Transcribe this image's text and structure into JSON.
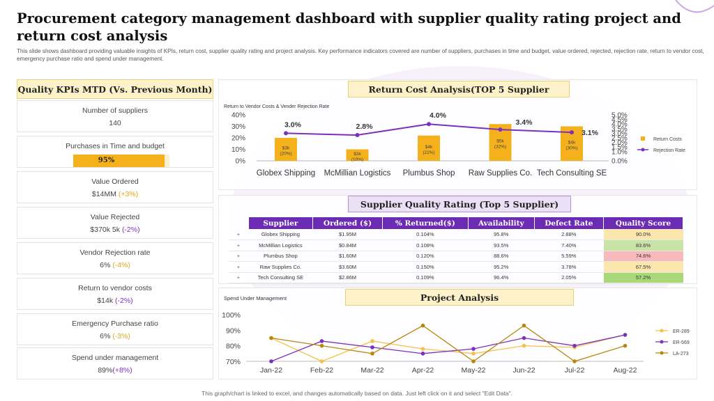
{
  "title": "Procurement category management dashboard with supplier quality rating project and return cost analysis",
  "subtitle": "This slide shows dashboard providing valuable insights of KPIs, return cost, supplier quality rating and project analysis. Key performance indicators covered are number of suppliers, purchases in time and budget, value ordered, rejected, rejection rate, return to vendor cost, emergency purchase ratio and spend under management.",
  "kpi_header": "Quality KPIs  MTD  (Vs. Previous Month)",
  "kpis": {
    "suppliers": {
      "label": "Number  of suppliers",
      "value": "140"
    },
    "purchases": {
      "label": "Purchases in Time and budget",
      "value": "95%",
      "fraction": 0.95
    },
    "value_ordered": {
      "label": "Value Ordered",
      "value": "$14MM",
      "change": "(+3%)"
    },
    "value_rejected": {
      "label": "Value Rejected",
      "value": "$370k 5k",
      "change": "(-2%)"
    },
    "vendor_rejection": {
      "label": "Vendor Rejection rate",
      "value": "6%",
      "change": "(-4%)"
    },
    "return_vendor": {
      "label": "Return to vendor  costs",
      "value": "$14k",
      "change": "(-2%)"
    },
    "emergency": {
      "label": "Emergency Purchase ratio",
      "value": "6%",
      "change": "(-3%)"
    },
    "spend": {
      "label": "Spend under management",
      "value": "89%",
      "change": "(+8%)"
    }
  },
  "return_cost_header": "Return Cost Analysis(TOP 5 Supplier",
  "quality_header": "Supplier Quality Rating (Top 5 Supplier)",
  "project_header": "Project Analysis",
  "footer": "This graph/chart is linked to excel,  and changes automatically based on data. Just left click on it and select \"Edit Data\".",
  "colors": {
    "gold": "#f5b11c",
    "purple": "#7b2fbf",
    "header_purple": "#6c2bb3",
    "olive": "#b8860b"
  },
  "table": {
    "headers": [
      "Supplier",
      "Ordered ($)",
      "% Returned($)",
      "Availability",
      "Defect Rate",
      "Quality Score"
    ],
    "rows": [
      {
        "expand": "+",
        "supplier": "Globex Shipping",
        "ordered": "$1.95M",
        "returned": "0.104%",
        "availability": "95.8%",
        "defect": "2.88%",
        "score": "90.0%",
        "score_color": "#fbe6ad"
      },
      {
        "expand": "+",
        "supplier": "McMillian Logistics",
        "ordered": "$0.84M",
        "returned": "0.108%",
        "availability": "93.5%",
        "defect": "7.40%",
        "score": "83.6%",
        "score_color": "#c9e3a6"
      },
      {
        "expand": "+",
        "supplier": "Plumbus Shop",
        "ordered": "$1.60M",
        "returned": "0.120%",
        "availability": "88.6%",
        "defect": "5.59%",
        "score": "74.6%",
        "score_color": "#f7b9b9"
      },
      {
        "expand": "+",
        "supplier": "Raw Supplies Co.",
        "ordered": "$3.60M",
        "returned": "0.150%",
        "availability": "95.2%",
        "defect": "3.78%",
        "score": "67.5%",
        "score_color": "#fbe6ad"
      },
      {
        "expand": "+",
        "supplier": "Tech Consulting SE",
        "ordered": "$2.86M",
        "returned": "0.109%",
        "availability": "96.4%",
        "defect": "2.05%",
        "score": "57.2%",
        "score_color": "#a8d878"
      }
    ]
  },
  "chart_data": [
    {
      "type": "bar",
      "title": "Return to Vendor Costs & Vender Rejection Rate",
      "categories": [
        "Globex Shipping",
        "McMillian Logistics",
        "Plumbus Shop",
        "Raw Supplies Co.",
        "Tech Consulting SE"
      ],
      "series": [
        {
          "name": "Return Costs",
          "axis": "left",
          "values": [
            20,
            10,
            22,
            32,
            30
          ],
          "labels": [
            "$3k (20%)",
            "$3k (10%)",
            "$4k (22%)",
            "$5k (32%)",
            "$4k (30%)"
          ]
        },
        {
          "name": "Rejection Rate",
          "axis": "right",
          "type": "line",
          "values": [
            3.0,
            2.8,
            4.0,
            3.4,
            3.1
          ],
          "labels": [
            "3.0%",
            "2.8%",
            "4.0%",
            "3.4%",
            "3.1%"
          ]
        }
      ],
      "ylim": [
        0,
        40
      ],
      "yticks": [
        "0%",
        "10%",
        "20%",
        "30%",
        "40%"
      ],
      "y2lim": [
        0,
        5
      ],
      "y2ticks": [
        "0.0%",
        "1.0%",
        "1.5%",
        "2.0%",
        "2.5%",
        "3.0%",
        "3.5%",
        "4.0%",
        "4.5%",
        "5.0%"
      ],
      "legend": "right"
    },
    {
      "type": "line",
      "title": "Spend Under Management",
      "categories": [
        "Jan-22",
        "Feb-22",
        "Mar-22",
        "Apr-22",
        "May-22",
        "Jun-22",
        "Jul-22",
        "Aug-22"
      ],
      "series": [
        {
          "name": "ER-289",
          "color": "#f5c04a",
          "values": [
            85,
            70,
            83,
            78,
            75,
            80,
            79,
            87
          ]
        },
        {
          "name": "ER-569",
          "color": "#7b2fbf",
          "values": [
            70,
            83,
            79,
            75,
            78,
            85,
            80,
            87
          ]
        },
        {
          "name": "LA-273",
          "color": "#b8860b",
          "values": [
            85,
            80,
            75,
            93,
            70,
            93,
            70,
            80
          ]
        }
      ],
      "ylim": [
        70,
        100
      ],
      "yticks": [
        "70%",
        "80%",
        "90%",
        "100%"
      ],
      "legend": "right"
    }
  ]
}
